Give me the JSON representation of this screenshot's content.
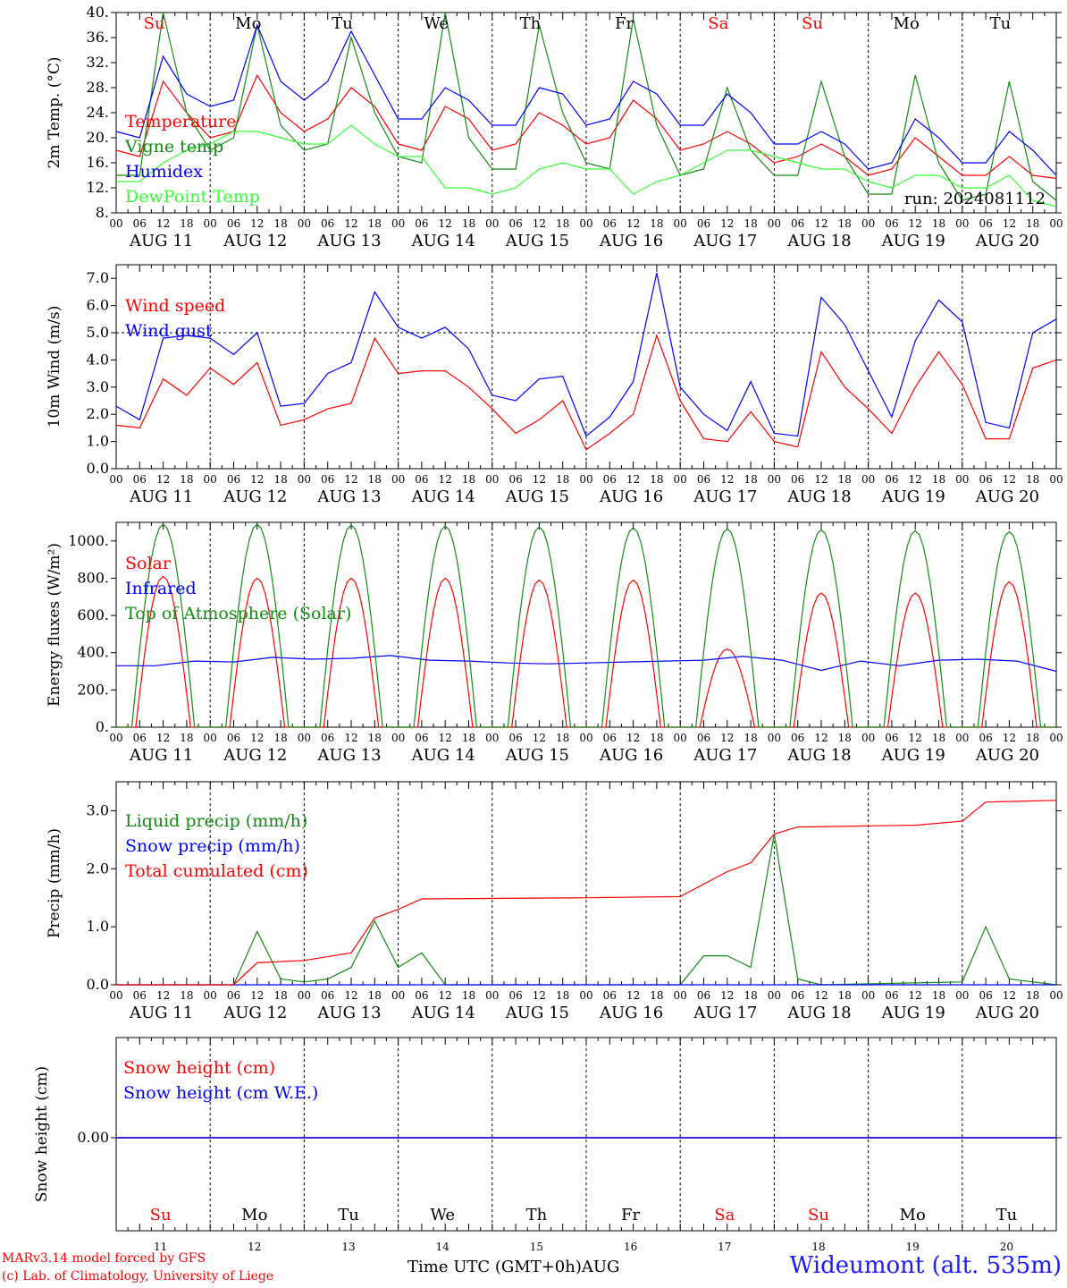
{
  "days": [
    "11",
    "12",
    "13",
    "14",
    "15",
    "16",
    "17",
    "18",
    "19",
    "20"
  ],
  "date_labels": [
    "AUG 11",
    "AUG 12",
    "AUG 13",
    "AUG 14",
    "AUG 15",
    "AUG 16",
    "AUG 17",
    "AUG 18",
    "AUG 19",
    "AUG 20"
  ],
  "weekdays": [
    {
      "label": "Su",
      "color": "#ff0000"
    },
    {
      "label": "Mo",
      "color": "#000000"
    },
    {
      "label": "Tu",
      "color": "#000000"
    },
    {
      "label": "We",
      "color": "#000000"
    },
    {
      "label": "Th",
      "color": "#000000"
    },
    {
      "label": "Fr",
      "color": "#000000"
    },
    {
      "label": "Sa",
      "color": "#ff0000"
    },
    {
      "label": "Su",
      "color": "#ff0000"
    },
    {
      "label": "Mo",
      "color": "#000000"
    },
    {
      "label": "Tu",
      "color": "#000000"
    }
  ],
  "hour_ticks": [
    "00",
    "06",
    "12",
    "18"
  ],
  "footer": {
    "model": "MARv3.14 model forced by GFS",
    "lab": "(c) Lab. of Climatology, University of Liege",
    "xlabel": "Time UTC (GMT+0h)",
    "month": "AUG",
    "station": "Wideumont (alt. 535m)"
  },
  "chart_data": [
    {
      "type": "line",
      "ylabel": "2m Temp. (°C)",
      "ylim": [
        8,
        40
      ],
      "yticks": [
        "8.",
        "12.",
        "16.",
        "20.",
        "24.",
        "28.",
        "32.",
        "36.",
        "40."
      ],
      "annotation": "run: 2024081112",
      "legend_placement": "left",
      "x_hours": [
        0,
        6,
        12,
        18,
        24,
        30,
        36,
        42,
        48,
        54,
        60,
        66,
        72,
        78,
        84,
        90,
        96,
        102,
        108,
        114,
        120,
        126,
        132,
        138,
        144,
        150,
        156,
        162,
        168,
        174,
        180,
        186,
        192,
        198,
        204,
        210,
        216,
        222,
        228,
        234,
        240
      ],
      "series": [
        {
          "name": "Temperature",
          "color": "#ff0000",
          "values": [
            18,
            17,
            29,
            24,
            20,
            21,
            30,
            24,
            21,
            23,
            28,
            25,
            19,
            18,
            25,
            23,
            18,
            19,
            24,
            22,
            19,
            20,
            26,
            23,
            18,
            19,
            21,
            19,
            16,
            17,
            19,
            17,
            14,
            15,
            20,
            17,
            14,
            14,
            17,
            14,
            13.5
          ]
        },
        {
          "name": "Vigne temp",
          "color": "#138a13",
          "values": [
            14,
            14,
            40,
            24,
            18,
            20,
            38,
            22,
            18,
            19,
            36,
            24,
            17,
            16,
            40,
            20,
            15,
            15,
            38,
            24,
            16,
            15,
            39,
            22,
            14,
            15,
            28,
            18,
            14,
            14,
            29,
            17,
            11,
            11,
            30,
            16,
            10,
            11,
            29,
            13,
            10
          ]
        },
        {
          "name": "Humidex",
          "color": "#0000ff",
          "values": [
            21,
            20,
            33,
            27,
            25,
            26,
            38,
            29,
            26,
            29,
            37,
            30,
            23,
            23,
            28,
            26,
            22,
            22,
            28,
            27,
            22,
            23,
            29,
            27,
            22,
            22,
            27,
            24,
            19,
            19,
            21,
            19,
            15,
            16,
            23,
            20,
            16,
            16,
            21,
            18,
            14
          ]
        },
        {
          "name": "DewPoint Temp",
          "color": "#33ff33",
          "values": [
            13,
            13,
            16,
            18,
            19,
            21,
            21,
            20,
            19,
            19,
            22,
            19,
            17,
            17,
            12,
            12,
            11,
            12,
            15,
            16,
            15,
            15,
            11,
            13,
            14,
            16,
            18,
            18,
            17,
            16,
            15,
            15,
            13,
            12,
            14,
            14,
            12,
            12,
            14,
            10,
            9
          ]
        }
      ]
    },
    {
      "type": "line",
      "ylabel": "10m Wind (m/s)",
      "ylim": [
        0,
        7.5
      ],
      "yticks": [
        "0.0",
        "1.0",
        "2.0",
        "3.0",
        "4.0",
        "5.0",
        "6.0",
        "7.0"
      ],
      "reference_line": 5.0,
      "legend_placement": "left",
      "x_hours": [
        0,
        6,
        12,
        18,
        24,
        30,
        36,
        42,
        48,
        54,
        60,
        66,
        72,
        78,
        84,
        90,
        96,
        102,
        108,
        114,
        120,
        126,
        132,
        138,
        144,
        150,
        156,
        162,
        168,
        174,
        180,
        186,
        192,
        198,
        204,
        210,
        216,
        222,
        228,
        234,
        240
      ],
      "series": [
        {
          "name": "Wind speed",
          "color": "#ff0000",
          "values": [
            1.6,
            1.5,
            3.3,
            2.7,
            3.7,
            3.1,
            3.9,
            1.6,
            1.8,
            2.2,
            2.4,
            4.8,
            3.5,
            3.6,
            3.6,
            3.0,
            2.2,
            1.3,
            1.8,
            2.5,
            0.7,
            1.3,
            2.0,
            4.9,
            2.5,
            1.1,
            1.0,
            2.1,
            1.0,
            0.8,
            4.3,
            3.0,
            2.2,
            1.3,
            3.0,
            4.3,
            3.1,
            1.1,
            1.1,
            3.7,
            4.0
          ]
        },
        {
          "name": "Wind gust",
          "color": "#0000ff",
          "values": [
            2.3,
            1.8,
            4.8,
            4.9,
            4.8,
            4.2,
            5.0,
            2.3,
            2.4,
            3.5,
            3.9,
            6.5,
            5.2,
            4.8,
            5.2,
            4.4,
            2.7,
            2.5,
            3.3,
            3.4,
            1.2,
            1.9,
            3.2,
            7.2,
            3.0,
            2.0,
            1.4,
            3.2,
            1.3,
            1.2,
            6.3,
            5.3,
            3.6,
            1.9,
            4.7,
            6.2,
            5.4,
            1.7,
            1.5,
            5.0,
            5.5
          ]
        }
      ]
    },
    {
      "type": "line",
      "ylabel": "Energy fluxes (W/m²)",
      "ylim": [
        0,
        1100
      ],
      "yticks": [
        "0.",
        "200.",
        "400.",
        "600.",
        "800.",
        "1000."
      ],
      "legend_placement": "left",
      "series": [
        {
          "name": "Solar",
          "color": "#ff0000",
          "daily_peaks": [
            810,
            800,
            800,
            800,
            790,
            790,
            420,
            720,
            720,
            780
          ]
        },
        {
          "name": "Infrared",
          "color": "#0000ff",
          "values": [
            330,
            330,
            355,
            350,
            375,
            365,
            370,
            385,
            360,
            355,
            345,
            340,
            345,
            350,
            355,
            360,
            380,
            360,
            305,
            355,
            330,
            360,
            365,
            355,
            300
          ]
        },
        {
          "name": "Top of Atmosphere (Solar)",
          "color": "#138a13",
          "daily_peaks": [
            1090,
            1090,
            1085,
            1080,
            1075,
            1070,
            1065,
            1060,
            1055,
            1050
          ]
        }
      ]
    },
    {
      "type": "line",
      "ylabel": "Precip (mm/h)",
      "ylim": [
        0,
        3.5
      ],
      "yticks": [
        "0.0",
        "1.0",
        "2.0",
        "3.0"
      ],
      "legend_placement": "left",
      "series": [
        {
          "name": "Liquid precip (mm/h)",
          "color": "#138a13",
          "points": [
            [
              0,
              0
            ],
            [
              30,
              0
            ],
            [
              36,
              0.92
            ],
            [
              42,
              0.1
            ],
            [
              48,
              0.05
            ],
            [
              54,
              0.1
            ],
            [
              60,
              0.3
            ],
            [
              66,
              1.1
            ],
            [
              72,
              0.3
            ],
            [
              78,
              0.55
            ],
            [
              84,
              0
            ],
            [
              144,
              0
            ],
            [
              150,
              0.5
            ],
            [
              156,
              0.5
            ],
            [
              162,
              0.3
            ],
            [
              168,
              2.6
            ],
            [
              174,
              0.1
            ],
            [
              180,
              0
            ],
            [
              216,
              0.05
            ],
            [
              222,
              1.0
            ],
            [
              228,
              0.1
            ],
            [
              240,
              0
            ]
          ]
        },
        {
          "name": "Snow precip (mm/h)",
          "color": "#0000ff",
          "points": [
            [
              0,
              0
            ],
            [
              240,
              0
            ]
          ]
        },
        {
          "name": "Total cumulated (cm)",
          "color": "#ff0000",
          "points": [
            [
              0,
              0
            ],
            [
              30,
              0
            ],
            [
              36,
              0.38
            ],
            [
              48,
              0.42
            ],
            [
              60,
              0.55
            ],
            [
              66,
              1.15
            ],
            [
              72,
              1.3
            ],
            [
              78,
              1.48
            ],
            [
              120,
              1.5
            ],
            [
              144,
              1.52
            ],
            [
              156,
              1.95
            ],
            [
              162,
              2.1
            ],
            [
              168,
              2.6
            ],
            [
              174,
              2.72
            ],
            [
              204,
              2.75
            ],
            [
              216,
              2.82
            ],
            [
              222,
              3.15
            ],
            [
              240,
              3.18
            ]
          ]
        }
      ]
    },
    {
      "type": "line",
      "ylabel": "Snow height (cm)",
      "yticks": [
        "0.00"
      ],
      "legend_placement": "left",
      "series": [
        {
          "name": "Snow height (cm)",
          "color": "#ff0000",
          "points": [
            [
              0,
              0
            ],
            [
              240,
              0
            ]
          ]
        },
        {
          "name": "Snow height (cm W.E.)",
          "color": "#0000ff",
          "points": [
            [
              0,
              0
            ],
            [
              240,
              0
            ]
          ]
        }
      ]
    }
  ]
}
